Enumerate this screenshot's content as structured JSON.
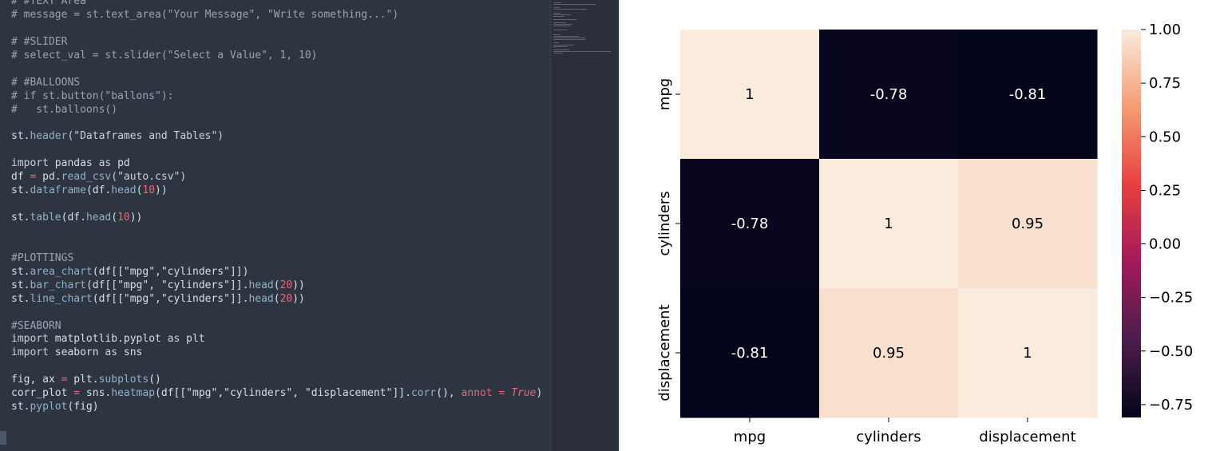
{
  "editor": {
    "code_lines": [
      [
        [
          "# #TEXT Area",
          "comment"
        ]
      ],
      [
        [
          "# message = st.text_area(\"Your Message\", \"Write something...\")",
          "comment"
        ]
      ],
      [
        [
          "",
          "plain"
        ]
      ],
      [
        [
          "# #SLIDER",
          "comment"
        ]
      ],
      [
        [
          "# select_val = st.slider(\"Select a Value\", 1, 10)",
          "comment"
        ]
      ],
      [
        [
          "",
          "plain"
        ]
      ],
      [
        [
          "# #BALLOONS",
          "comment"
        ]
      ],
      [
        [
          "# if st.button(\"ballons\"):",
          "comment"
        ]
      ],
      [
        [
          "#   st.balloons()",
          "comment"
        ]
      ],
      [
        [
          "",
          "plain"
        ]
      ],
      [
        [
          "st.",
          "plain"
        ],
        [
          "header",
          "fn"
        ],
        [
          "(\"Dataframes and Tables\")",
          "str"
        ]
      ],
      [
        [
          "",
          "plain"
        ]
      ],
      [
        [
          "import",
          "kw"
        ],
        [
          " pandas ",
          "plain"
        ],
        [
          "as",
          "kw"
        ],
        [
          " pd",
          "plain"
        ]
      ],
      [
        [
          "df ",
          "plain"
        ],
        [
          "=",
          "op"
        ],
        [
          " pd.",
          "plain"
        ],
        [
          "read_csv",
          "fn"
        ],
        [
          "(\"auto.csv\")",
          "str"
        ]
      ],
      [
        [
          "st.",
          "plain"
        ],
        [
          "dataframe",
          "fn"
        ],
        [
          "(df.",
          "plain"
        ],
        [
          "head",
          "fn"
        ],
        [
          "(",
          "plain"
        ],
        [
          "10",
          "num"
        ],
        [
          "))",
          "plain"
        ]
      ],
      [
        [
          "",
          "plain"
        ]
      ],
      [
        [
          "st.",
          "plain"
        ],
        [
          "table",
          "fn"
        ],
        [
          "(df.",
          "plain"
        ],
        [
          "head",
          "fn"
        ],
        [
          "(",
          "plain"
        ],
        [
          "10",
          "num"
        ],
        [
          "))",
          "plain"
        ]
      ],
      [
        [
          "",
          "plain"
        ]
      ],
      [
        [
          "",
          "plain"
        ]
      ],
      [
        [
          "#PLOTTINGS",
          "comment"
        ]
      ],
      [
        [
          "st.",
          "plain"
        ],
        [
          "area_chart",
          "fn"
        ],
        [
          "(df[[\"mpg\",\"cylinders\"]])",
          "plain"
        ]
      ],
      [
        [
          "st.",
          "plain"
        ],
        [
          "bar_chart",
          "fn"
        ],
        [
          "(df[[\"mpg\", \"cylinders\"]].",
          "plain"
        ],
        [
          "head",
          "fn"
        ],
        [
          "(",
          "plain"
        ],
        [
          "20",
          "num"
        ],
        [
          "))",
          "plain"
        ]
      ],
      [
        [
          "st.",
          "plain"
        ],
        [
          "line_chart",
          "fn"
        ],
        [
          "(df[[\"mpg\",\"cylinders\"]].",
          "plain"
        ],
        [
          "head",
          "fn"
        ],
        [
          "(",
          "plain"
        ],
        [
          "20",
          "num"
        ],
        [
          "))",
          "plain"
        ]
      ],
      [
        [
          "",
          "plain"
        ]
      ],
      [
        [
          "#SEABORN",
          "comment"
        ]
      ],
      [
        [
          "import",
          "kw"
        ],
        [
          " matplotlib.pyplot ",
          "plain"
        ],
        [
          "as",
          "kw"
        ],
        [
          " plt",
          "plain"
        ]
      ],
      [
        [
          "import",
          "kw"
        ],
        [
          " seaborn ",
          "plain"
        ],
        [
          "as",
          "kw"
        ],
        [
          " sns",
          "plain"
        ]
      ],
      [
        [
          "",
          "plain"
        ]
      ],
      [
        [
          "fig, ax ",
          "plain"
        ],
        [
          "=",
          "op"
        ],
        [
          " plt.",
          "plain"
        ],
        [
          "subplots",
          "fn"
        ],
        [
          "()",
          "plain"
        ]
      ],
      [
        [
          "corr_plot ",
          "plain"
        ],
        [
          "=",
          "op"
        ],
        [
          " sns.",
          "plain"
        ],
        [
          "heatmap",
          "fn"
        ],
        [
          "(df[[\"mpg\",\"cylinders\", \"displacement\"]].",
          "plain"
        ],
        [
          "corr",
          "fn"
        ],
        [
          "(), ",
          "plain"
        ],
        [
          "annot",
          "op"
        ],
        [
          " = ",
          "op"
        ],
        [
          "True",
          "true"
        ],
        [
          ")",
          "plain"
        ]
      ],
      [
        [
          "st.",
          "plain"
        ],
        [
          "pyplot",
          "fn"
        ],
        [
          "(fig)",
          "plain"
        ]
      ]
    ]
  },
  "chart_data": {
    "type": "heatmap",
    "x_labels": [
      "mpg",
      "cylinders",
      "displacement"
    ],
    "y_labels": [
      "mpg",
      "cylinders",
      "displacement"
    ],
    "values": [
      [
        1,
        -0.78,
        -0.81
      ],
      [
        -0.78,
        1,
        0.95
      ],
      [
        -0.81,
        0.95,
        1
      ]
    ],
    "annotations": [
      [
        "1",
        "-0.78",
        "-0.81"
      ],
      [
        "-0.78",
        "1",
        "0.95"
      ],
      [
        "-0.81",
        "0.95",
        "1"
      ]
    ],
    "colorbar": {
      "min": -0.81,
      "max": 1.0,
      "ticks": [
        1.0,
        0.75,
        0.5,
        0.25,
        0.0,
        -0.25,
        -0.5,
        -0.75
      ],
      "tick_labels": [
        "1.00",
        "0.75",
        "0.50",
        "0.25",
        "0.00",
        "−0.25",
        "−0.50",
        "−0.75"
      ],
      "colormap": [
        "#03051a",
        "#4c1d4b",
        "#a11a5b",
        "#e83f3f",
        "#f69c73",
        "#faebdd"
      ]
    }
  }
}
